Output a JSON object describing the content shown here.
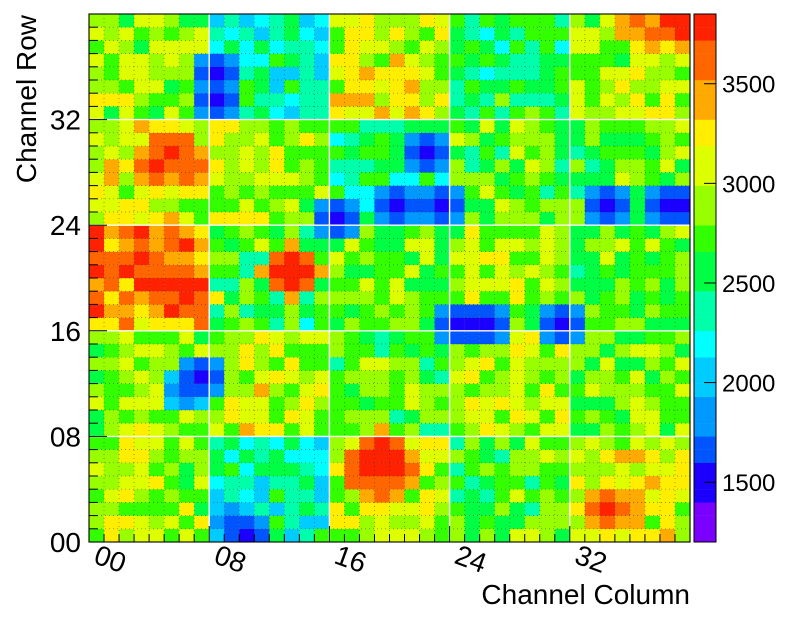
{
  "chart_data": {
    "type": "heatmap",
    "title": "",
    "xlabel": "Channel Column",
    "ylabel": "Channel Row",
    "columns": 40,
    "rows": 40,
    "xlim": [
      0,
      40
    ],
    "ylim": [
      0,
      40
    ],
    "x_ticks": [
      {
        "value": 0,
        "label": "00"
      },
      {
        "value": 8,
        "label": "08"
      },
      {
        "value": 16,
        "label": "16"
      },
      {
        "value": 24,
        "label": "24"
      },
      {
        "value": 32,
        "label": "32"
      }
    ],
    "y_ticks": [
      {
        "value": 0,
        "label": "00"
      },
      {
        "value": 8,
        "label": "08"
      },
      {
        "value": 16,
        "label": "16"
      },
      {
        "value": 24,
        "label": "24"
      },
      {
        "value": 32,
        "label": "32"
      }
    ],
    "colorbar": {
      "min": 1200,
      "max": 3850,
      "ticks": [
        1500,
        2000,
        2500,
        3000,
        3500
      ],
      "tick_labels": [
        "1500",
        "2000",
        "2500",
        "3000",
        "3500"
      ],
      "palette": [
        "#7a00ff",
        "#1c00ff",
        "#0055ff",
        "#0099ff",
        "#00ccff",
        "#00ffff",
        "#00ffaa",
        "#00ff44",
        "#33ff00",
        "#99ff00",
        "#ddff00",
        "#ffee00",
        "#ffaa00",
        "#ff6600",
        "#ff2200"
      ]
    },
    "grid": "dotted minor gridlines; white module boundaries every 8 channels in x and every 8 channels in y",
    "module_regions": [
      {
        "x0": 0,
        "x1": 8,
        "y0": 0,
        "y1": 8,
        "value": 2900
      },
      {
        "x0": 8,
        "x1": 16,
        "y0": 0,
        "y1": 8,
        "value": 2350
      },
      {
        "x0": 16,
        "x1": 24,
        "y0": 0,
        "y1": 8,
        "value": 3000
      },
      {
        "x0": 24,
        "x1": 32,
        "y0": 0,
        "y1": 8,
        "value": 2700
      },
      {
        "x0": 32,
        "x1": 40,
        "y0": 0,
        "y1": 8,
        "value": 3050
      },
      {
        "x0": 0,
        "x1": 8,
        "y0": 8,
        "y1": 16,
        "value": 2850
      },
      {
        "x0": 8,
        "x1": 16,
        "y0": 8,
        "y1": 16,
        "value": 3000
      },
      {
        "x0": 16,
        "x1": 24,
        "y0": 8,
        "y1": 16,
        "value": 2650
      },
      {
        "x0": 24,
        "x1": 32,
        "y0": 8,
        "y1": 16,
        "value": 2950
      },
      {
        "x0": 32,
        "x1": 40,
        "y0": 8,
        "y1": 16,
        "value": 2750
      },
      {
        "x0": 0,
        "x1": 8,
        "y0": 16,
        "y1": 24,
        "value": 3450
      },
      {
        "x0": 8,
        "x1": 16,
        "y0": 16,
        "y1": 24,
        "value": 2600
      },
      {
        "x0": 16,
        "x1": 24,
        "y0": 16,
        "y1": 24,
        "value": 2750
      },
      {
        "x0": 24,
        "x1": 32,
        "y0": 16,
        "y1": 24,
        "value": 2900
      },
      {
        "x0": 32,
        "x1": 40,
        "y0": 16,
        "y1": 24,
        "value": 2700
      },
      {
        "x0": 0,
        "x1": 8,
        "y0": 24,
        "y1": 32,
        "value": 3050
      },
      {
        "x0": 8,
        "x1": 16,
        "y0": 24,
        "y1": 32,
        "value": 2900
      },
      {
        "x0": 16,
        "x1": 24,
        "y0": 24,
        "y1": 32,
        "value": 2450
      },
      {
        "x0": 24,
        "x1": 32,
        "y0": 24,
        "y1": 32,
        "value": 2700
      },
      {
        "x0": 32,
        "x1": 40,
        "y0": 24,
        "y1": 32,
        "value": 2750
      },
      {
        "x0": 0,
        "x1": 8,
        "y0": 32,
        "y1": 40,
        "value": 2850
      },
      {
        "x0": 8,
        "x1": 16,
        "y0": 32,
        "y1": 40,
        "value": 2300
      },
      {
        "x0": 16,
        "x1": 24,
        "y0": 32,
        "y1": 40,
        "value": 3050
      },
      {
        "x0": 24,
        "x1": 32,
        "y0": 32,
        "y1": 40,
        "value": 2500
      },
      {
        "x0": 32,
        "x1": 40,
        "y0": 32,
        "y1": 40,
        "value": 2900
      }
    ],
    "hotspots": [
      {
        "x": 18,
        "y": 5,
        "value": 3750
      },
      {
        "x": 19,
        "y": 6,
        "value": 3800
      },
      {
        "x": 20,
        "y": 5,
        "value": 3700
      },
      {
        "x": 19,
        "y": 4,
        "value": 3650
      },
      {
        "x": 34,
        "y": 2,
        "value": 3700
      },
      {
        "x": 35,
        "y": 2,
        "value": 3600
      },
      {
        "x": 3,
        "y": 21,
        "value": 3700
      },
      {
        "x": 4,
        "y": 20,
        "value": 3650
      },
      {
        "x": 5,
        "y": 19,
        "value": 3750
      },
      {
        "x": 5,
        "y": 22,
        "value": 3600
      },
      {
        "x": 6,
        "y": 18,
        "value": 3700
      },
      {
        "x": 13,
        "y": 20,
        "value": 3800
      },
      {
        "x": 4,
        "y": 28,
        "value": 3700
      },
      {
        "x": 5,
        "y": 29,
        "value": 3750
      },
      {
        "x": 6,
        "y": 28,
        "value": 3650
      },
      {
        "x": 36,
        "y": 39,
        "value": 3600
      },
      {
        "x": 37,
        "y": 38,
        "value": 3550
      },
      {
        "x": 39,
        "y": 39,
        "value": 3800
      }
    ],
    "coldspots": [
      {
        "x": 9,
        "y": 1,
        "value": 1600
      },
      {
        "x": 10,
        "y": 0,
        "value": 1500
      },
      {
        "x": 8,
        "y": 33,
        "value": 1450
      },
      {
        "x": 8,
        "y": 35,
        "value": 1550
      },
      {
        "x": 16,
        "y": 24,
        "value": 1500
      },
      {
        "x": 20,
        "y": 25,
        "value": 1550
      },
      {
        "x": 23,
        "y": 25,
        "value": 1450
      },
      {
        "x": 24,
        "y": 16,
        "value": 1400
      },
      {
        "x": 25,
        "y": 16,
        "value": 1450
      },
      {
        "x": 26,
        "y": 16,
        "value": 1500
      },
      {
        "x": 31,
        "y": 16,
        "value": 1500
      },
      {
        "x": 6,
        "y": 11,
        "value": 1600
      },
      {
        "x": 7,
        "y": 12,
        "value": 1550
      },
      {
        "x": 22,
        "y": 29,
        "value": 1550
      },
      {
        "x": 34,
        "y": 25,
        "value": 1500
      },
      {
        "x": 38,
        "y": 25,
        "value": 1550
      },
      {
        "x": 39,
        "y": 25,
        "value": 1500
      }
    ]
  }
}
